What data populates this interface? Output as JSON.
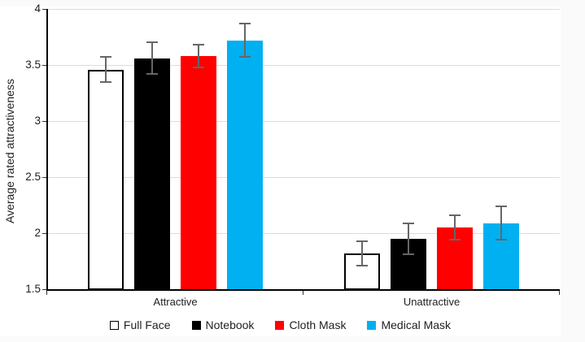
{
  "chart_data": {
    "type": "bar",
    "title": "",
    "xlabel": "",
    "ylabel": "Average rated attractiveness",
    "ylim": [
      1.5,
      4
    ],
    "ytick_step": 0.5,
    "ytick_values": [
      1.5,
      2,
      2.5,
      3,
      3.5,
      4
    ],
    "ytick_labels": [
      "1.5",
      "2",
      "2.5",
      "3",
      "3.5",
      "4"
    ],
    "grid": true,
    "legend_position": "bottom",
    "categories": [
      "Attractive",
      "Unattractive"
    ],
    "series": [
      {
        "name": "Full Face",
        "fill": "#FFFFFF",
        "border": "#000000",
        "values": [
          3.46,
          1.82
        ],
        "errors": [
          0.11,
          0.11
        ]
      },
      {
        "name": "Notebook",
        "fill": "#000000",
        "border": "#000000",
        "values": [
          3.56,
          1.95
        ],
        "errors": [
          0.14,
          0.14
        ]
      },
      {
        "name": "Cloth Mask",
        "fill": "#FF0000",
        "border": "#FF0000",
        "values": [
          3.58,
          2.05
        ],
        "errors": [
          0.1,
          0.11
        ]
      },
      {
        "name": "Medical Mask",
        "fill": "#00B0F0",
        "border": "#00B0F0",
        "values": [
          3.72,
          2.09
        ],
        "errors": [
          0.15,
          0.15
        ]
      }
    ],
    "error_bar_color": "#666666",
    "gridline_color": "#DCDCDC",
    "axis_color": "#000000"
  }
}
